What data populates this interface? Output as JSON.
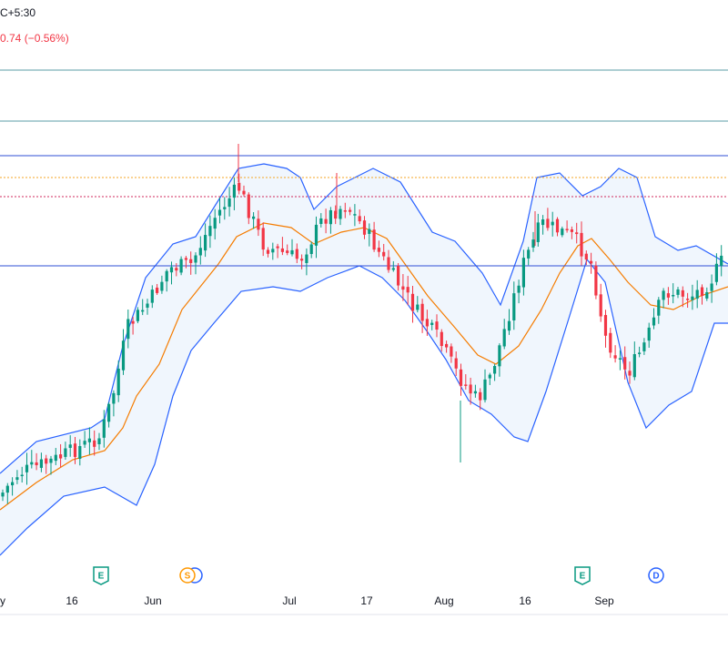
{
  "header": {
    "timezone_fragment": "C+5:30",
    "change_text": "0.74 (−0.56%)",
    "change_color": "#f23645"
  },
  "colors": {
    "up": "#089981",
    "down": "#f23645",
    "band": "#2962ff",
    "band_fill": "#e3eefb",
    "basis": "#f57c00",
    "hline_teal": "#5b9ea7",
    "hline_blue": "#2f4fd6",
    "dotted_orange": "#f5a623",
    "dotted_red": "#d12a5c",
    "earnings": "#089981",
    "split": "#ff9800",
    "dividend": "#2962ff"
  },
  "x_axis": {
    "ticks": [
      "y",
      "16",
      "Jun",
      "Jul",
      "17",
      "Aug",
      "16",
      "Sep"
    ]
  },
  "events": [
    {
      "letter": "E",
      "type": "earnings"
    },
    {
      "letter": "S",
      "type": "split"
    },
    {
      "letter": "E",
      "type": "earnings"
    },
    {
      "letter": "D",
      "type": "dividend"
    }
  ],
  "chart_data": {
    "type": "candlestick",
    "price_scale": "not shown",
    "overlays": [
      "Bollinger Bands",
      "Basis line"
    ],
    "horizontal_lines": 4,
    "dotted_lines": 2,
    "x_tick_labels": [
      "y",
      "16",
      "Jun",
      "Jul",
      "17",
      "Aug",
      "16",
      "Sep"
    ]
  }
}
